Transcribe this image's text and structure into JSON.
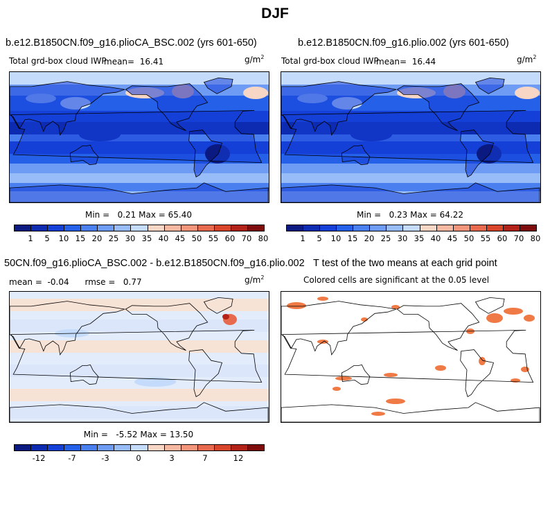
{
  "page_title": "DJF",
  "colors": {
    "abs_scale": [
      "#0a1a80",
      "#0d2bb0",
      "#1540d8",
      "#2560e8",
      "#4a7ff0",
      "#6e9cf5",
      "#98bcf8",
      "#c4dbfb",
      "#f7d6c6",
      "#f6b8a0",
      "#f2957a",
      "#e86a4e",
      "#d8452a",
      "#b22218",
      "#7e0c0c"
    ],
    "diff_scale": [
      "#0a1a80",
      "#0d2bb0",
      "#1540d8",
      "#2560e8",
      "#4a7ff0",
      "#6e9cf5",
      "#98bcf8",
      "#c4dbfb",
      "#f7d6c6",
      "#f6b8a0",
      "#f2957a",
      "#e86a4e",
      "#d8452a",
      "#b22218",
      "#7e0c0c"
    ],
    "significant": "#f07a45"
  },
  "chart_data": [
    {
      "type": "heatmap",
      "title": "b.e12.B1850CN.f09_g16.plioCA_BSC.002 (yrs 601-650)",
      "subtitle": "Total grd-box cloud IWP",
      "mean_label": "mean=",
      "mean_value": "16.41",
      "units": "g/m",
      "units_exp": "2",
      "min_label": "Min =",
      "min_value": "0.21",
      "max_label": "Max =",
      "max_value": "65.40",
      "colorbar_labels": [
        "1",
        "5",
        "10",
        "15",
        "20",
        "25",
        "30",
        "35",
        "40",
        "45",
        "50",
        "55",
        "60",
        "70",
        "80"
      ]
    },
    {
      "type": "heatmap",
      "title": "b.e12.B1850CN.f09_g16.plio.002 (yrs 601-650)",
      "subtitle": "Total grd-box cloud IWP",
      "mean_label": "mean=",
      "mean_value": "16.44",
      "units": "g/m",
      "units_exp": "2",
      "min_label": "Min =",
      "min_value": "0.23",
      "max_label": "Max =",
      "max_value": "64.22",
      "colorbar_labels": [
        "1",
        "5",
        "10",
        "15",
        "20",
        "25",
        "30",
        "35",
        "40",
        "45",
        "50",
        "55",
        "60",
        "70",
        "80"
      ]
    },
    {
      "type": "heatmap",
      "title": "50CN.f09_g16.plioCA_BSC.002 - b.e12.B1850CN.f09_g16.plio.002",
      "mean_label": "mean =",
      "mean_value": "-0.04",
      "rmse_label": "rmse =",
      "rmse_value": "0.77",
      "units": "g/m",
      "units_exp": "2",
      "min_label": "Min =",
      "min_value": "-5.52",
      "max_label": "Max =",
      "max_value": "13.50",
      "colorbar_labels": [
        "-12",
        "-7",
        "-3",
        "0",
        "3",
        "7",
        "12"
      ]
    },
    {
      "type": "heatmap",
      "title": "T test of the two means at each grid point",
      "subtitle": "Colored cells are significant at the 0.05 level"
    }
  ]
}
